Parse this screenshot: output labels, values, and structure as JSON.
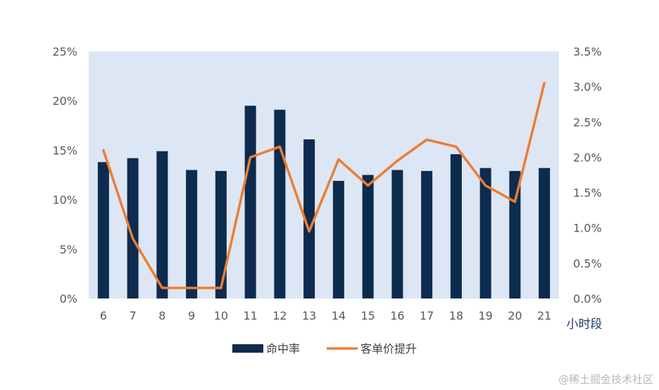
{
  "chart_data": {
    "type": "bar+line",
    "categories": [
      "6",
      "7",
      "8",
      "9",
      "10",
      "11",
      "12",
      "13",
      "14",
      "15",
      "16",
      "17",
      "18",
      "19",
      "20",
      "21"
    ],
    "series": [
      {
        "name": "命中率",
        "type": "bar",
        "axis": "left",
        "color": "#0d2b4e",
        "values": [
          13.8,
          14.2,
          14.9,
          13.0,
          12.9,
          19.5,
          19.1,
          16.1,
          11.9,
          12.5,
          13.0,
          12.9,
          14.6,
          13.2,
          12.9,
          13.2
        ]
      },
      {
        "name": "客单价提升",
        "type": "line",
        "axis": "right",
        "color": "#ed7d31",
        "values": [
          2.1,
          0.85,
          0.15,
          0.15,
          0.15,
          2.0,
          2.15,
          0.95,
          1.97,
          1.6,
          1.95,
          2.25,
          2.15,
          1.6,
          1.37,
          3.05
        ]
      }
    ],
    "y_left": {
      "min": 0,
      "max": 25,
      "ticks": [
        "0%",
        "5%",
        "10%",
        "15%",
        "20%",
        "25%"
      ]
    },
    "y_right": {
      "min": 0,
      "max": 3.5,
      "ticks": [
        "0.0%",
        "0.5%",
        "1.0%",
        "1.5%",
        "2.0%",
        "2.5%",
        "3.0%",
        "3.5%"
      ]
    },
    "xlabel": "小时段",
    "plot_background": "#dce6f4",
    "legend_position": "bottom",
    "grid": false
  },
  "watermark": "@稀土掘金技术社区"
}
